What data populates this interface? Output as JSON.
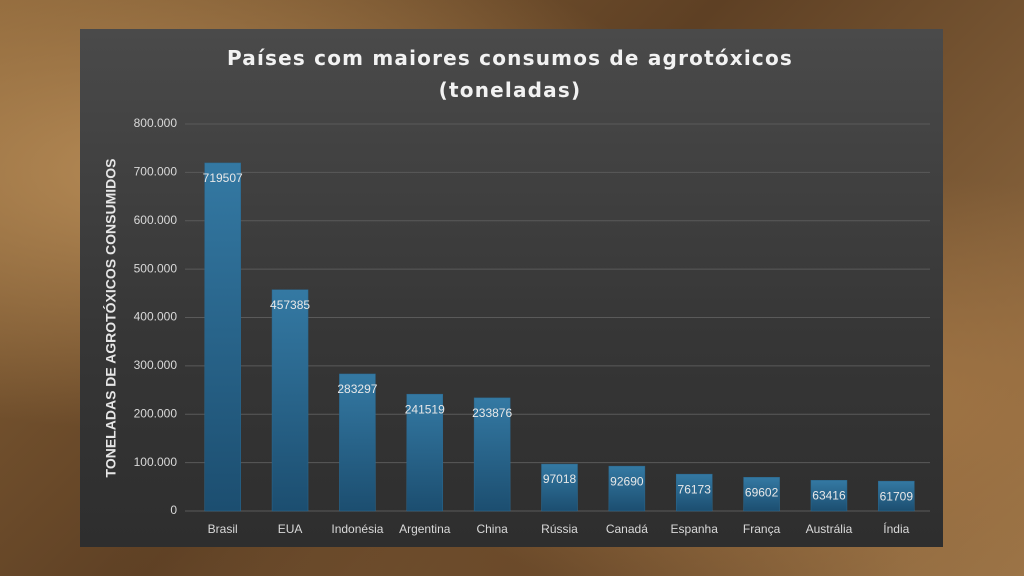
{
  "chart_data": {
    "type": "bar",
    "title": "Países com maiores consumos de agrotóxicos (toneladas)",
    "y_label": "TONELADAS DE AGROTÓXICOS CONSUMIDOS",
    "categories": [
      "Brasil",
      "EUA",
      "Indonésia",
      "Argentina",
      "China",
      "Rússia",
      "Canadá",
      "Espanha",
      "França",
      "Austrália",
      "Índia"
    ],
    "values": [
      719507,
      457385,
      283297,
      241519,
      233876,
      97018,
      92690,
      76173,
      69602,
      63416,
      61709
    ],
    "color": "#2b6a91",
    "ylim": [
      0,
      800000
    ],
    "yticks": [
      0,
      {
        "value": 100000,
        "label": "100.000"
      },
      {
        "value": 200000,
        "label": "200.000"
      },
      {
        "value": 300000,
        "label": "300.000"
      },
      {
        "value": 400000,
        "label": "400.000"
      },
      {
        "value": 500000,
        "label": "500.000"
      },
      {
        "value": 600000,
        "label": "600.000"
      },
      {
        "value": 700000,
        "label": "700.000"
      },
      {
        "value": 800000,
        "label": "800.000"
      }
    ],
    "grid": true
  }
}
